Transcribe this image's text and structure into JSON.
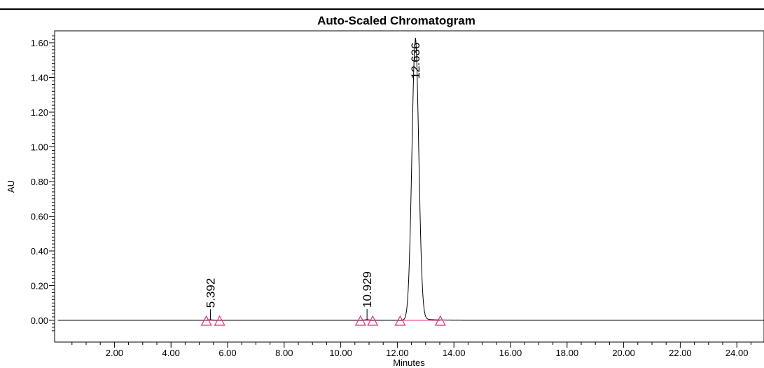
{
  "chart_data": {
    "type": "line",
    "title": "Auto-Scaled Chromatogram",
    "xlabel": "Minutes",
    "ylabel": "AU",
    "xlim": [
      0,
      25.0
    ],
    "ylim": [
      -0.07,
      1.66
    ],
    "x_ticks": [
      "2.00",
      "4.00",
      "6.00",
      "8.00",
      "10.00",
      "12.00",
      "14.00",
      "16.00",
      "18.00",
      "20.00",
      "22.00",
      "24.00"
    ],
    "y_ticks": [
      "0.00",
      "0.20",
      "0.40",
      "0.60",
      "0.80",
      "1.00",
      "1.20",
      "1.40",
      "1.60"
    ],
    "grid": false,
    "series": [
      {
        "color": "#000000",
        "baseline": 0.0,
        "peaks": [
          {
            "rt": 5.392,
            "height": 0.003,
            "width": 0.08
          },
          {
            "rt": 10.929,
            "height": 0.004,
            "width": 0.08
          },
          {
            "rt": 12.636,
            "height": 1.61,
            "width": 0.12
          }
        ]
      }
    ],
    "peak_labels": [
      "5.392",
      "10.929",
      "12.636"
    ],
    "integration_markers": [
      {
        "start": 5.25,
        "end": 5.72
      },
      {
        "start": 10.7,
        "end": 11.13
      },
      {
        "start": 12.1,
        "end": 13.52
      }
    ],
    "marker_color": "#e0307f"
  }
}
